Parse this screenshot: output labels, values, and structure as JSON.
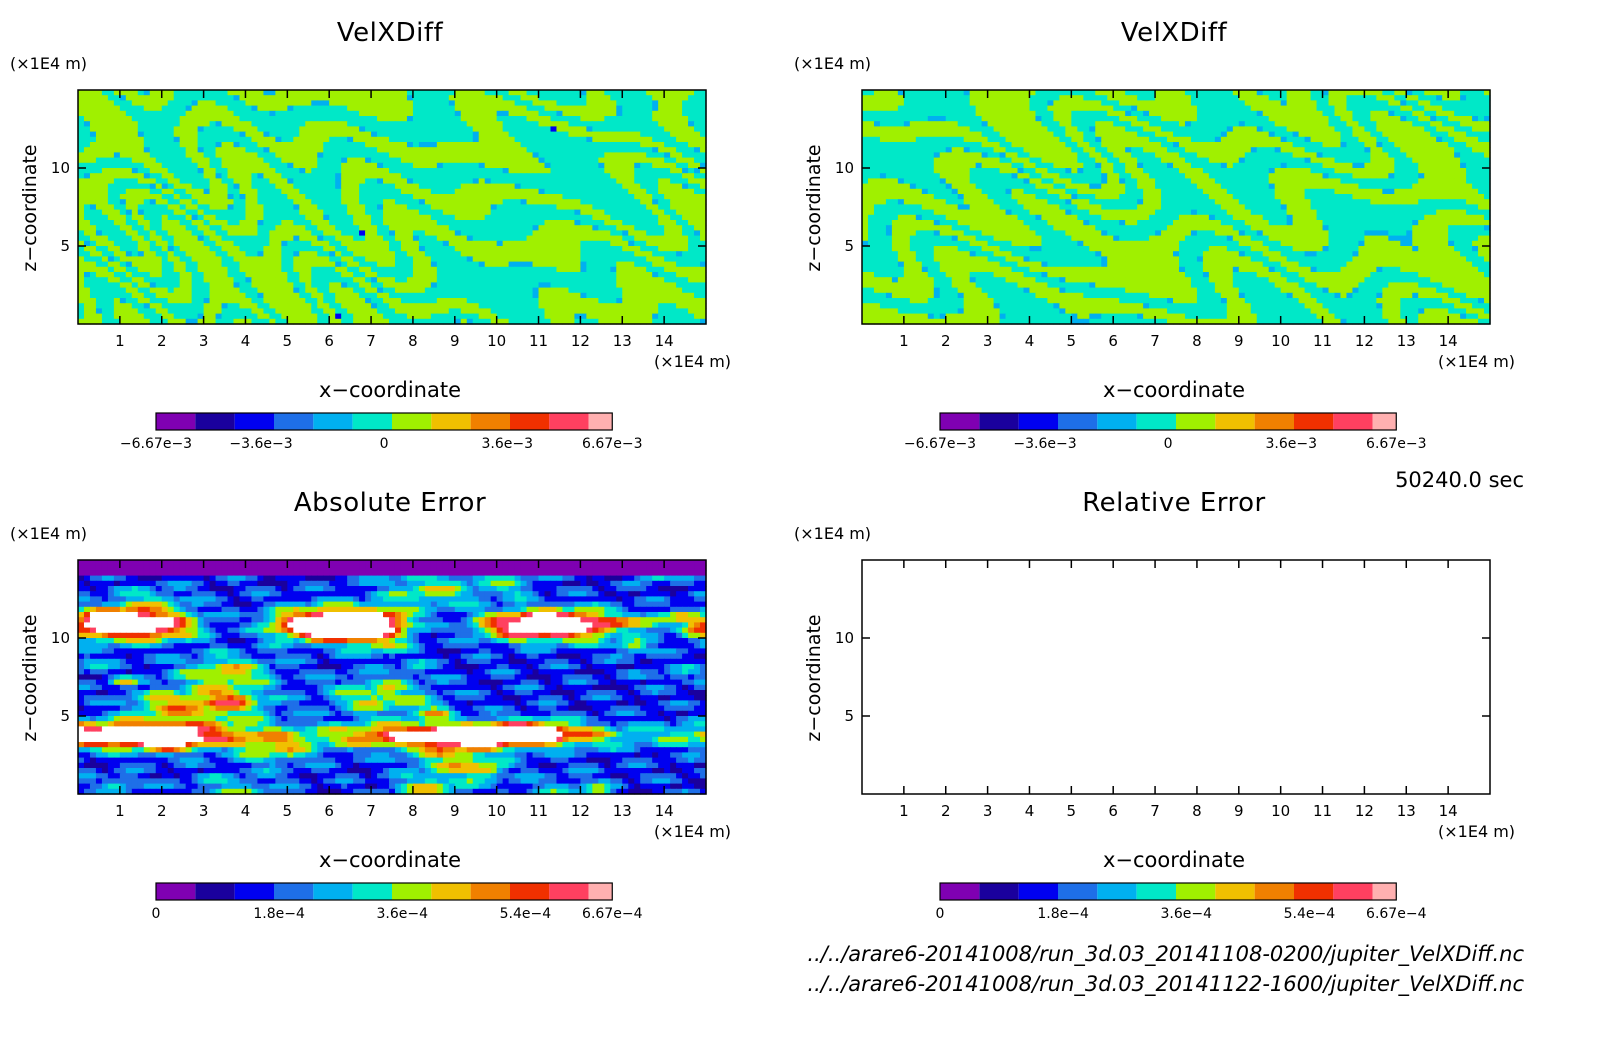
{
  "time_label": "50240.0 sec",
  "files": [
    "../../arare6-20141008/run_3d.03_20141108-0200/jupiter_VelXDiff.nc",
    "../../arare6-20141008/run_3d.03_20141122-1600/jupiter_VelXDiff.nc"
  ],
  "panel_colors": [
    "#7f00b2",
    "#1a009d",
    "#0000f0",
    "#1e6fe8",
    "#00b0f0",
    "#00e8c8",
    "#a0f000",
    "#f0c000",
    "#f08000",
    "#f03000",
    "#ff4060",
    "#ffb0b0"
  ],
  "chart_data": [
    {
      "type": "heatmap",
      "title": "VelXDiff",
      "xlabel": "x−coordinate",
      "ylabel": "z−coordinate",
      "x_unit": "(×1E4 m)",
      "y_unit": "(×1E4 m)",
      "xlim": [
        0,
        15
      ],
      "ylim": [
        0,
        15
      ],
      "x_ticks": [
        1,
        2,
        3,
        4,
        5,
        6,
        7,
        8,
        9,
        10,
        11,
        12,
        13,
        14
      ],
      "y_ticks": [
        5,
        10
      ],
      "colorbar": {
        "range": [
          -0.00667,
          0.00667
        ],
        "labels": [
          "−6.67e−3",
          "−3.6e−3",
          "0",
          "3.6e−3",
          "6.67e−3"
        ],
        "label_values": [
          -0.00667,
          -0.0036,
          0,
          0.0036,
          0.00667
        ]
      },
      "pattern": "stripes",
      "seed": 3
    },
    {
      "type": "heatmap",
      "title": "VelXDiff",
      "xlabel": "x−coordinate",
      "ylabel": "z−coordinate",
      "x_unit": "(×1E4 m)",
      "y_unit": "(×1E4 m)",
      "xlim": [
        0,
        15
      ],
      "ylim": [
        0,
        15
      ],
      "x_ticks": [
        1,
        2,
        3,
        4,
        5,
        6,
        7,
        8,
        9,
        10,
        11,
        12,
        13,
        14
      ],
      "y_ticks": [
        5,
        10
      ],
      "colorbar": {
        "range": [
          -0.00667,
          0.00667
        ],
        "labels": [
          "−6.67e−3",
          "−3.6e−3",
          "0",
          "3.6e−3",
          "6.67e−3"
        ],
        "label_values": [
          -0.00667,
          -0.0036,
          0,
          0.0036,
          0.00667
        ]
      },
      "pattern": "stripes",
      "seed": 11
    },
    {
      "type": "heatmap",
      "title": "Absolute Error",
      "xlabel": "x−coordinate",
      "ylabel": "z−coordinate",
      "x_unit": "(×1E4 m)",
      "y_unit": "(×1E4 m)",
      "xlim": [
        0,
        15
      ],
      "ylim": [
        0,
        15
      ],
      "x_ticks": [
        1,
        2,
        3,
        4,
        5,
        6,
        7,
        8,
        9,
        10,
        11,
        12,
        13,
        14
      ],
      "y_ticks": [
        5,
        10
      ],
      "colorbar": {
        "range": [
          0,
          0.000667
        ],
        "labels": [
          "0",
          "1.8e−4",
          "3.6e−4",
          "5.4e−4",
          "6.67e−4"
        ],
        "label_values": [
          0,
          0.00018,
          0.00036,
          0.00054,
          0.000667
        ]
      },
      "pattern": "error",
      "seed": 7
    },
    {
      "type": "heatmap",
      "title": "Relative Error",
      "xlabel": "x−coordinate",
      "ylabel": "z−coordinate",
      "x_unit": "(×1E4 m)",
      "y_unit": "(×1E4 m)",
      "xlim": [
        0,
        15
      ],
      "ylim": [
        0,
        15
      ],
      "x_ticks": [
        1,
        2,
        3,
        4,
        5,
        6,
        7,
        8,
        9,
        10,
        11,
        12,
        13,
        14
      ],
      "y_ticks": [
        5,
        10
      ],
      "colorbar": {
        "range": [
          0,
          0.000667
        ],
        "labels": [
          "0",
          "1.8e−4",
          "3.6e−4",
          "5.4e−4",
          "6.67e−4"
        ],
        "label_values": [
          0,
          0.00018,
          0.00036,
          0.00054,
          0.000667
        ]
      },
      "pattern": "empty",
      "seed": 1
    }
  ]
}
